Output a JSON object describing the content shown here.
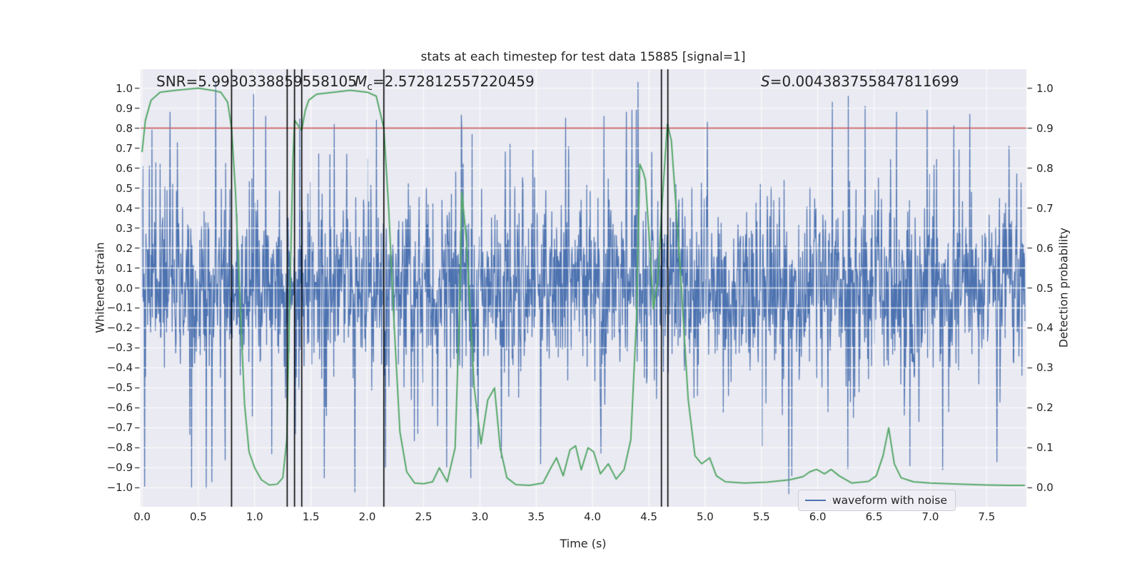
{
  "title": "stats at each timestep for test data 15885 [signal=1]",
  "annotations": {
    "snr": "SNR=5.9930338859558105",
    "mc": {
      "var": "M",
      "sub": "c",
      "value": "=2.572812557220459"
    },
    "s": {
      "var": "S",
      "value": "=0.004383755847811699"
    }
  },
  "colors": {
    "figure_background": "#ffffff",
    "axes_background": "#eaeaf2",
    "grid": "#ffffff",
    "text": "#262626",
    "waveform_blue": "#4c72b0",
    "probability_green": "#55a868",
    "threshold_red": "#c44e52",
    "marker_black": "#000000"
  },
  "chart_data": {
    "type": "line",
    "title": "stats at each timestep for test data 15885 [signal=1]",
    "xlabel": "Time (s)",
    "ylabel_left": "Whitened strain",
    "ylabel_right": "Detection probability",
    "xlim": [
      0,
      7.84
    ],
    "ylim_left": [
      -1.095,
      1.095
    ],
    "ylim_right": [
      -0.0475,
      1.0475
    ],
    "x_ticks": [
      0.0,
      0.5,
      1.0,
      1.5,
      2.0,
      2.5,
      3.0,
      3.5,
      4.0,
      4.5,
      5.0,
      5.5,
      6.0,
      6.5,
      7.0,
      7.5
    ],
    "y_ticks_left": [
      1.0,
      0.9,
      0.8,
      0.7,
      0.6,
      0.5,
      0.4,
      0.3,
      0.2,
      0.1,
      0.0,
      -0.1,
      -0.2,
      -0.3,
      -0.4,
      -0.5,
      -0.6,
      -0.7,
      -0.8,
      -0.9,
      -1.0
    ],
    "y_ticks_right": [
      1.0,
      0.9,
      0.8,
      0.7,
      0.6,
      0.5,
      0.4,
      0.3,
      0.2,
      0.1,
      0.0
    ],
    "grid": true,
    "legend": {
      "label": "waveform with noise",
      "position": "lower right"
    },
    "series": [
      {
        "name": "waveform with noise",
        "kind": "noise_waveform",
        "axis": "left",
        "color": "#4c72b0",
        "line_width": 1.2,
        "n_samples": 2050,
        "t_max": 7.84,
        "seed": 15885,
        "core_sigma": 0.2,
        "mid_sigma": 0.33,
        "mid_prob": 0.2,
        "tail_sigma": 0.52,
        "tail_prob": 0.03,
        "clip": 1.03,
        "notable_extremes": [
          [
            0.25,
            0.88
          ],
          [
            0.44,
            -1.0
          ],
          [
            0.62,
            -0.97
          ],
          [
            0.74,
            -0.86
          ],
          [
            0.99,
            0.97
          ],
          [
            1.1,
            0.86
          ],
          [
            1.15,
            -0.83
          ],
          [
            1.62,
            -0.95
          ],
          [
            1.89,
            -1.02
          ],
          [
            2.08,
            0.84
          ],
          [
            2.16,
            -0.9
          ],
          [
            2.84,
            0.8
          ],
          [
            2.92,
            -0.95
          ],
          [
            3.19,
            -0.85
          ],
          [
            3.54,
            -0.88
          ],
          [
            3.76,
            0.85
          ],
          [
            4.1,
            0.86
          ],
          [
            4.3,
            0.88
          ],
          [
            4.35,
            0.89
          ],
          [
            4.39,
            0.89
          ],
          [
            5.02,
            0.83
          ],
          [
            5.77,
            -0.94
          ],
          [
            6.13,
            0.93
          ],
          [
            6.27,
            0.96
          ],
          [
            6.42,
            0.91
          ],
          [
            6.7,
            0.88
          ],
          [
            6.82,
            -0.89
          ],
          [
            6.97,
            0.89
          ],
          [
            7.11,
            -0.91
          ],
          [
            7.35,
            0.87
          ],
          [
            7.59,
            -0.87
          ],
          [
            7.7,
            0.71
          ]
        ]
      },
      {
        "name": "detection probability",
        "kind": "line",
        "axis": "right",
        "color": "#55a868",
        "line_width": 2.0,
        "points": [
          [
            0.0,
            0.84
          ],
          [
            0.03,
            0.92
          ],
          [
            0.08,
            0.97
          ],
          [
            0.16,
            0.99
          ],
          [
            0.3,
            0.995
          ],
          [
            0.5,
            1.0
          ],
          [
            0.62,
            0.995
          ],
          [
            0.7,
            0.99
          ],
          [
            0.76,
            0.965
          ],
          [
            0.795,
            0.9
          ],
          [
            0.83,
            0.74
          ],
          [
            0.87,
            0.47
          ],
          [
            0.91,
            0.21
          ],
          [
            0.95,
            0.09
          ],
          [
            1.0,
            0.05
          ],
          [
            1.06,
            0.02
          ],
          [
            1.13,
            0.007
          ],
          [
            1.2,
            0.009
          ],
          [
            1.25,
            0.025
          ],
          [
            1.285,
            0.12
          ],
          [
            1.31,
            0.45
          ],
          [
            1.34,
            0.82
          ],
          [
            1.355,
            0.92
          ],
          [
            1.39,
            0.905
          ],
          [
            1.418,
            0.895
          ],
          [
            1.45,
            0.945
          ],
          [
            1.48,
            0.97
          ],
          [
            1.55,
            0.985
          ],
          [
            1.7,
            0.99
          ],
          [
            1.85,
            0.995
          ],
          [
            2.0,
            0.99
          ],
          [
            2.08,
            0.98
          ],
          [
            2.147,
            0.9
          ],
          [
            2.19,
            0.7
          ],
          [
            2.24,
            0.4
          ],
          [
            2.29,
            0.14
          ],
          [
            2.35,
            0.04
          ],
          [
            2.42,
            0.012
          ],
          [
            2.5,
            0.01
          ],
          [
            2.58,
            0.015
          ],
          [
            2.64,
            0.05
          ],
          [
            2.71,
            0.015
          ],
          [
            2.78,
            0.1
          ],
          [
            2.82,
            0.45
          ],
          [
            2.84,
            0.74
          ],
          [
            2.88,
            0.62
          ],
          [
            2.95,
            0.25
          ],
          [
            3.01,
            0.11
          ],
          [
            3.07,
            0.22
          ],
          [
            3.13,
            0.25
          ],
          [
            3.18,
            0.1
          ],
          [
            3.24,
            0.025
          ],
          [
            3.32,
            0.008
          ],
          [
            3.44,
            0.006
          ],
          [
            3.56,
            0.012
          ],
          [
            3.63,
            0.05
          ],
          [
            3.68,
            0.075
          ],
          [
            3.74,
            0.03
          ],
          [
            3.8,
            0.095
          ],
          [
            3.85,
            0.105
          ],
          [
            3.9,
            0.045
          ],
          [
            3.96,
            0.1
          ],
          [
            4.01,
            0.09
          ],
          [
            4.07,
            0.035
          ],
          [
            4.14,
            0.06
          ],
          [
            4.21,
            0.022
          ],
          [
            4.28,
            0.045
          ],
          [
            4.34,
            0.12
          ],
          [
            4.39,
            0.42
          ],
          [
            4.42,
            0.81
          ],
          [
            4.45,
            0.79
          ],
          [
            4.47,
            0.77
          ],
          [
            4.51,
            0.6
          ],
          [
            4.54,
            0.448
          ],
          [
            4.58,
            0.52
          ],
          [
            4.62,
            0.72
          ],
          [
            4.665,
            0.91
          ],
          [
            4.7,
            0.87
          ],
          [
            4.77,
            0.59
          ],
          [
            4.85,
            0.22
          ],
          [
            4.91,
            0.08
          ],
          [
            4.97,
            0.06
          ],
          [
            5.04,
            0.075
          ],
          [
            5.1,
            0.03
          ],
          [
            5.18,
            0.015
          ],
          [
            5.35,
            0.012
          ],
          [
            5.55,
            0.014
          ],
          [
            5.75,
            0.02
          ],
          [
            5.87,
            0.028
          ],
          [
            5.93,
            0.04
          ],
          [
            5.99,
            0.046
          ],
          [
            6.06,
            0.035
          ],
          [
            6.12,
            0.046
          ],
          [
            6.19,
            0.03
          ],
          [
            6.3,
            0.012
          ],
          [
            6.45,
            0.016
          ],
          [
            6.52,
            0.03
          ],
          [
            6.58,
            0.08
          ],
          [
            6.63,
            0.15
          ],
          [
            6.68,
            0.06
          ],
          [
            6.74,
            0.025
          ],
          [
            6.85,
            0.015
          ],
          [
            7.0,
            0.012
          ],
          [
            7.25,
            0.009
          ],
          [
            7.5,
            0.007
          ],
          [
            7.7,
            0.006
          ],
          [
            7.84,
            0.006
          ]
        ]
      },
      {
        "name": "detection threshold",
        "kind": "hline",
        "axis": "right",
        "color": "#c44e52",
        "line_width": 1.5,
        "y": 0.9
      },
      {
        "name": "event markers",
        "kind": "vlines",
        "color": "#000000",
        "line_width": 1.6,
        "times": [
          0.795,
          1.289,
          1.354,
          1.418,
          2.147,
          4.612,
          4.669
        ]
      }
    ]
  }
}
